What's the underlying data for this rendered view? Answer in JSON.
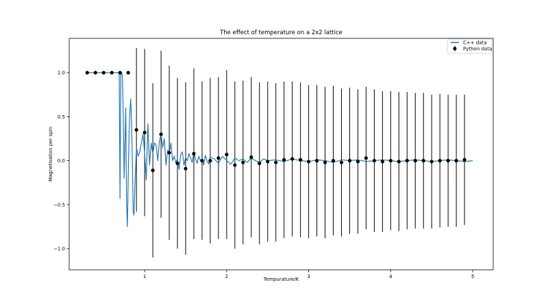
{
  "chart_data": {
    "type": "line",
    "title": "The effect of temperature on a 2x2 lattice",
    "xlabel": "Tempurature/K",
    "ylabel": "Magnetisation per spin",
    "xlim": [
      0.08,
      5.25
    ],
    "ylim": [
      -1.24,
      1.39
    ],
    "xticks": [
      1,
      2,
      3,
      4,
      5
    ],
    "yticks": [
      -1.0,
      -0.5,
      0.0,
      0.5,
      1.0
    ],
    "xtick_labels": [
      "1",
      "2",
      "3",
      "4",
      "5"
    ],
    "ytick_labels": [
      "−1.0",
      "−0.5",
      "0.0",
      "0.5",
      "1.0"
    ],
    "grid": false,
    "legend_position": "top-right",
    "colors": {
      "line": "#1f77b4",
      "points": "#000000",
      "errorbars": "#000000"
    },
    "series": [
      {
        "name": "C++ data",
        "kind": "line",
        "x": [
          0.3,
          0.5,
          0.6,
          0.65,
          0.67,
          0.69,
          0.7,
          0.71,
          0.72,
          0.73,
          0.74,
          0.75,
          0.76,
          0.77,
          0.78,
          0.79,
          0.8,
          0.81,
          0.82,
          0.83,
          0.84,
          0.85,
          0.86,
          0.87,
          0.88,
          0.9,
          0.92,
          0.94,
          0.96,
          0.98,
          1.0,
          1.02,
          1.04,
          1.06,
          1.08,
          1.1,
          1.12,
          1.14,
          1.16,
          1.18,
          1.2,
          1.22,
          1.24,
          1.26,
          1.28,
          1.3,
          1.32,
          1.34,
          1.36,
          1.38,
          1.4,
          1.42,
          1.44,
          1.46,
          1.48,
          1.5,
          1.52,
          1.54,
          1.56,
          1.58,
          1.6,
          1.62,
          1.64,
          1.66,
          1.68,
          1.7,
          1.72,
          1.74,
          1.76,
          1.78,
          1.8,
          1.85,
          1.9,
          1.95,
          2.0,
          2.05,
          2.1,
          2.15,
          2.2,
          2.25,
          2.3,
          2.35,
          2.4,
          2.45,
          2.5,
          2.6,
          2.7,
          2.8,
          2.9,
          3.0,
          3.1,
          3.2,
          3.3,
          3.4,
          3.5,
          3.6,
          3.7,
          3.8,
          3.9,
          4.0,
          4.1,
          4.2,
          4.3,
          4.4,
          4.5,
          4.6,
          4.7,
          4.8,
          4.9,
          5.0
        ],
        "values": [
          1.0,
          1.0,
          1.0,
          1.0,
          1.0,
          1.0,
          -0.43,
          0.98,
          1.0,
          0.95,
          0.5,
          -0.2,
          0.2,
          0.6,
          -0.5,
          -0.75,
          -0.2,
          0.3,
          0.55,
          0.7,
          0.45,
          0.0,
          -0.58,
          -0.62,
          -0.3,
          0.15,
          0.05,
          0.1,
          0.2,
          0.3,
          0.08,
          -0.22,
          0.42,
          -0.05,
          0.2,
          0.08,
          0.2,
          0.18,
          0.0,
          0.22,
          0.3,
          0.15,
          0.25,
          -0.05,
          0.12,
          0.08,
          0.2,
          0.0,
          0.05,
          -0.02,
          0.02,
          -0.1,
          0.07,
          0.1,
          -0.05,
          0.04,
          0.0,
          0.08,
          0.03,
          -0.02,
          0.1,
          0.02,
          -0.03,
          0.05,
          0.0,
          0.02,
          -0.05,
          0.06,
          0.0,
          -0.04,
          0.04,
          0.02,
          -0.03,
          0.05,
          0.0,
          -0.04,
          0.03,
          0.0,
          0.02,
          -0.02,
          0.03,
          0.0,
          -0.02,
          0.02,
          0.0,
          0.01,
          -0.01,
          0.02,
          0.0,
          -0.01,
          0.01,
          0.0,
          -0.02,
          0.01,
          0.0,
          0.01,
          -0.01,
          0.0,
          0.01,
          0.0,
          -0.01,
          0.0,
          0.01,
          0.0,
          -0.01,
          0.0,
          0.01,
          0.0,
          -0.01,
          0.0
        ]
      },
      {
        "name": "Python data",
        "kind": "errorbar",
        "x": [
          0.3,
          0.4,
          0.5,
          0.6,
          0.7,
          0.8,
          0.9,
          1.0,
          1.1,
          1.2,
          1.3,
          1.4,
          1.5,
          1.6,
          1.7,
          1.8,
          1.9,
          2.0,
          2.1,
          2.2,
          2.3,
          2.4,
          2.5,
          2.6,
          2.7,
          2.8,
          2.9,
          3.0,
          3.1,
          3.2,
          3.3,
          3.4,
          3.5,
          3.6,
          3.7,
          3.8,
          3.9,
          4.0,
          4.1,
          4.2,
          4.3,
          4.4,
          4.5,
          4.6,
          4.7,
          4.8,
          4.9
        ],
        "values": [
          1.0,
          1.0,
          1.0,
          1.0,
          1.0,
          1.0,
          0.35,
          0.32,
          -0.11,
          0.3,
          0.09,
          -0.03,
          -0.09,
          0.08,
          0.0,
          0.0,
          0.03,
          0.07,
          -0.05,
          -0.02,
          0.04,
          -0.03,
          -0.01,
          -0.02,
          0.01,
          0.02,
          0.01,
          -0.01,
          0.0,
          -0.02,
          0.0,
          -0.02,
          0.0,
          -0.01,
          0.03,
          0.0,
          -0.01,
          0.0,
          -0.01,
          0.0,
          0.0,
          0.0,
          -0.01,
          0.0,
          0.0,
          0.0,
          0.01
        ],
        "errors": [
          0,
          0,
          0,
          0,
          0,
          0,
          0.93,
          0.95,
          0.99,
          0.95,
          0.99,
          0.97,
          0.98,
          0.97,
          0.9,
          0.94,
          0.92,
          0.96,
          0.95,
          0.93,
          0.91,
          0.92,
          0.91,
          0.9,
          0.89,
          0.88,
          0.88,
          0.87,
          0.86,
          0.86,
          0.85,
          0.84,
          0.83,
          0.82,
          0.81,
          0.81,
          0.8,
          0.79,
          0.79,
          0.78,
          0.77,
          0.77,
          0.76,
          0.76,
          0.75,
          0.75,
          0.74
        ]
      }
    ]
  }
}
